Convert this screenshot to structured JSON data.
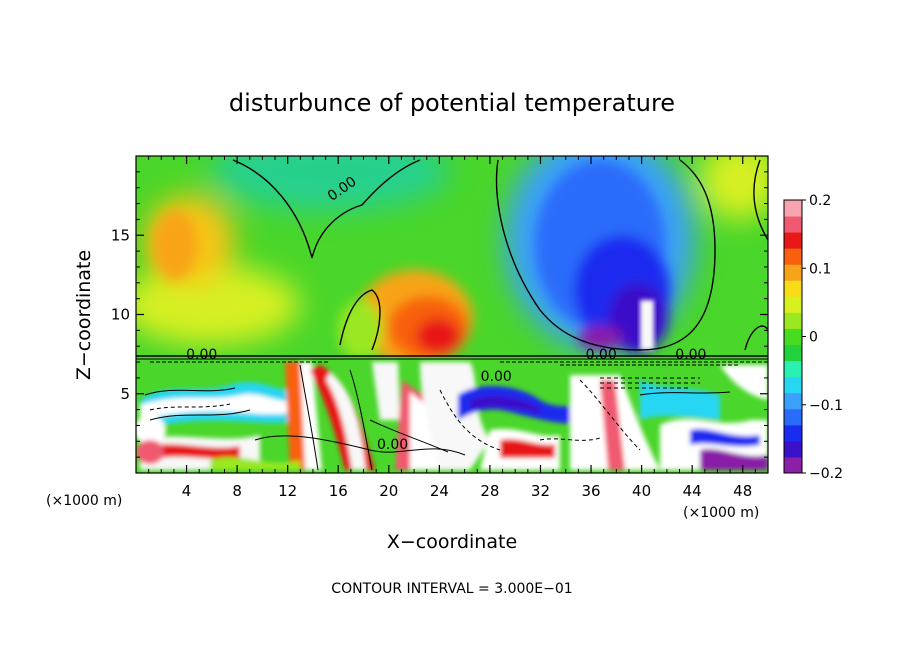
{
  "chart_data": {
    "type": "heatmap",
    "title": "disturbunce of potential temperature",
    "xlabel": "X−coordinate",
    "ylabel": "Z−coordinate",
    "x_unit_label_left": "(×1000 m)",
    "x_unit_label_right": "(×1000 m)",
    "footer": "CONTOUR INTERVAL = 3.000E−01",
    "xlim": [
      0,
      50
    ],
    "ylim": [
      0,
      20
    ],
    "x_ticks": [
      4,
      8,
      12,
      16,
      20,
      24,
      28,
      32,
      36,
      40,
      44,
      48
    ],
    "x_tick_labels": [
      "4",
      "8",
      "12",
      "16",
      "20",
      "24",
      "28",
      "32",
      "36",
      "40",
      "44",
      "48"
    ],
    "y_ticks": [
      5,
      10,
      15
    ],
    "y_tick_labels": [
      "5",
      "10",
      "15"
    ],
    "colorbar": {
      "range": [
        -0.2,
        0.2
      ],
      "ticks": [
        0.2,
        0.1,
        0,
        -0.1,
        -0.2
      ],
      "tick_labels": [
        "0.2",
        "0.1",
        "0",
        "−0.1",
        "−0.2"
      ],
      "colors": [
        "#8a1fa8",
        "#3a10c8",
        "#1a2cf0",
        "#2a6cfa",
        "#3aa0fa",
        "#28d6f2",
        "#2af0b2",
        "#22d23c",
        "#48dc20",
        "#9ae820",
        "#d6f020",
        "#f8dc18",
        "#f8a418",
        "#f86010",
        "#e81818",
        "#f05a70",
        "#f8a4b0"
      ]
    },
    "contour_labels": [
      {
        "text": "0.00",
        "x": 16.5,
        "y": 17.7
      },
      {
        "text": "0.00",
        "x": 5.2,
        "y": 7.2
      },
      {
        "text": "0.00",
        "x": 28.5,
        "y": 5.8
      },
      {
        "text": "0.00",
        "x": 20.3,
        "y": 1.5
      },
      {
        "text": "0.00",
        "x": 36.8,
        "y": 7.2
      },
      {
        "text": "0.00",
        "x": 43.9,
        "y": 7.2
      }
    ]
  }
}
